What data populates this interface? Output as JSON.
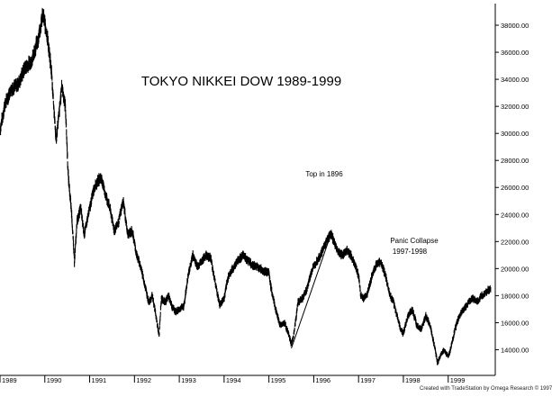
{
  "chart_data": {
    "type": "bar",
    "style": "daily-ohlc",
    "title": "TOKYO NIKKEI DOW 1989-1999",
    "xlabel": "",
    "ylabel": "",
    "x_tick_labels": [
      "1989",
      "1990",
      "1991",
      "1992",
      "1993",
      "1994",
      "1995",
      "1996",
      "1997",
      "1998",
      "1999"
    ],
    "xlim": [
      1989.0,
      2000.05
    ],
    "y_tick_values": [
      14000,
      16000,
      18000,
      20000,
      22000,
      24000,
      26000,
      28000,
      30000,
      32000,
      34000,
      36000,
      38000
    ],
    "y_tick_labels": [
      "14000.00",
      "16000.00",
      "18000.00",
      "20000.00",
      "22000.00",
      "24000.00",
      "26000.00",
      "28000.00",
      "30000.00",
      "32000.00",
      "34000.00",
      "36000.00",
      "38000.00"
    ],
    "ylim": [
      12100,
      39600
    ],
    "grid": false,
    "series": [
      {
        "points": [
          [
            1989.0,
            30200
          ],
          [
            1989.1,
            32000
          ],
          [
            1989.25,
            33300
          ],
          [
            1989.4,
            33600
          ],
          [
            1989.55,
            34800
          ],
          [
            1989.7,
            35300
          ],
          [
            1989.85,
            37000
          ],
          [
            1989.96,
            38800
          ],
          [
            1990.05,
            37300
          ],
          [
            1990.15,
            34500
          ],
          [
            1990.25,
            29500
          ],
          [
            1990.32,
            31500
          ],
          [
            1990.38,
            33500
          ],
          [
            1990.46,
            32000
          ],
          [
            1990.52,
            27000
          ],
          [
            1990.6,
            24000
          ],
          [
            1990.66,
            20500
          ],
          [
            1990.72,
            23500
          ],
          [
            1990.8,
            24500
          ],
          [
            1990.88,
            22500
          ],
          [
            1990.96,
            23800
          ],
          [
            1991.1,
            26000
          ],
          [
            1991.25,
            26800
          ],
          [
            1991.35,
            25500
          ],
          [
            1991.45,
            24500
          ],
          [
            1991.55,
            22800
          ],
          [
            1991.65,
            23500
          ],
          [
            1991.75,
            25000
          ],
          [
            1991.85,
            22500
          ],
          [
            1991.95,
            22800
          ],
          [
            1992.05,
            21000
          ],
          [
            1992.15,
            20000
          ],
          [
            1992.25,
            18500
          ],
          [
            1992.32,
            17500
          ],
          [
            1992.4,
            18000
          ],
          [
            1992.48,
            16500
          ],
          [
            1992.55,
            15000
          ],
          [
            1992.6,
            17800
          ],
          [
            1992.68,
            17500
          ],
          [
            1992.76,
            18000
          ],
          [
            1992.84,
            17200
          ],
          [
            1992.92,
            16800
          ],
          [
            1993.0,
            17000
          ],
          [
            1993.1,
            17200
          ],
          [
            1993.2,
            19500
          ],
          [
            1993.3,
            21000
          ],
          [
            1993.4,
            20200
          ],
          [
            1993.5,
            20500
          ],
          [
            1993.6,
            21000
          ],
          [
            1993.7,
            20800
          ],
          [
            1993.8,
            19000
          ],
          [
            1993.9,
            17300
          ],
          [
            1994.0,
            17800
          ],
          [
            1994.1,
            19500
          ],
          [
            1994.2,
            20000
          ],
          [
            1994.3,
            20600
          ],
          [
            1994.42,
            21000
          ],
          [
            1994.55,
            20500
          ],
          [
            1994.68,
            20200
          ],
          [
            1994.8,
            20000
          ],
          [
            1994.9,
            19800
          ],
          [
            1995.0,
            19700
          ],
          [
            1995.05,
            18500
          ],
          [
            1995.15,
            17000
          ],
          [
            1995.25,
            15800
          ],
          [
            1995.35,
            16000
          ],
          [
            1995.45,
            15000
          ],
          [
            1995.5,
            14400
          ],
          [
            1995.55,
            15000
          ],
          [
            1995.65,
            17500
          ],
          [
            1995.75,
            17800
          ],
          [
            1995.85,
            18500
          ],
          [
            1995.95,
            19800
          ],
          [
            1996.05,
            20500
          ],
          [
            1996.15,
            21000
          ],
          [
            1996.28,
            22000
          ],
          [
            1996.38,
            22600
          ],
          [
            1996.45,
            22000
          ],
          [
            1996.55,
            21200
          ],
          [
            1996.65,
            21000
          ],
          [
            1996.75,
            21400
          ],
          [
            1996.82,
            21000
          ],
          [
            1996.9,
            20500
          ],
          [
            1997.0,
            19500
          ],
          [
            1997.05,
            18000
          ],
          [
            1997.12,
            17800
          ],
          [
            1997.2,
            18200
          ],
          [
            1997.3,
            19500
          ],
          [
            1997.4,
            20300
          ],
          [
            1997.5,
            20500
          ],
          [
            1997.6,
            19500
          ],
          [
            1997.7,
            18000
          ],
          [
            1997.78,
            17500
          ],
          [
            1997.86,
            16500
          ],
          [
            1997.94,
            15500
          ],
          [
            1998.0,
            15200
          ],
          [
            1998.1,
            16500
          ],
          [
            1998.2,
            17000
          ],
          [
            1998.3,
            15800
          ],
          [
            1998.4,
            15500
          ],
          [
            1998.5,
            16500
          ],
          [
            1998.6,
            15800
          ],
          [
            1998.7,
            14200
          ],
          [
            1998.76,
            13000
          ],
          [
            1998.82,
            13500
          ],
          [
            1998.9,
            14000
          ],
          [
            1999.0,
            13500
          ],
          [
            1999.05,
            14000
          ],
          [
            1999.15,
            15500
          ],
          [
            1999.25,
            16500
          ],
          [
            1999.35,
            17000
          ],
          [
            1999.45,
            17500
          ],
          [
            1999.55,
            17800
          ],
          [
            1999.65,
            17500
          ],
          [
            1999.75,
            18000
          ],
          [
            1999.85,
            18300
          ],
          [
            1999.95,
            18500
          ]
        ]
      }
    ],
    "trendline": {
      "from": [
        1995.5,
        14100
      ],
      "to": [
        1996.4,
        22700
      ]
    },
    "annotations": [
      {
        "text": "Top in 1896",
        "x": 1996.25,
        "y": 23300
      },
      {
        "text": "Panic Collapse",
        "x": 1998.1,
        "y": 19000
      },
      {
        "text": "1997-1998",
        "x": 1998.1,
        "y": 18150
      }
    ]
  },
  "footer": {
    "credit": "Created with TradeStation by Omega Research © 1997"
  },
  "colors": {
    "price": "#000000",
    "axis": "#000000",
    "background": "#ffffff",
    "text": "#000000"
  }
}
